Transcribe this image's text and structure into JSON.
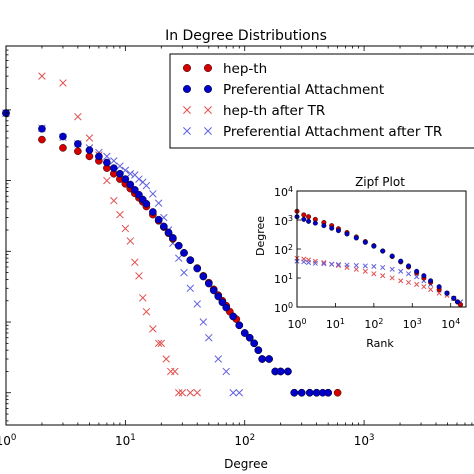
{
  "chart_data": [
    {
      "type": "scatter",
      "title": "In Degree Distributions",
      "xlabel": "Degree",
      "ylabel": "",
      "x_scale": "log",
      "y_scale": "log",
      "xlim": [
        1,
        9000
      ],
      "ylim": [
        0.35,
        80000
      ],
      "x_tick_labels": [
        {
          "value": 1,
          "label": "10^0"
        },
        {
          "value": 10,
          "label": "10^1"
        },
        {
          "value": 100,
          "label": "10^2"
        },
        {
          "value": 1000,
          "label": "10^3"
        }
      ],
      "legend_placement": "top-right",
      "colors": {
        "red": "#d40000",
        "blue": "#0000c8",
        "red_x": "#e25050",
        "blue_x": "#6060e0"
      },
      "series": [
        {
          "name": "hep-th",
          "marker": "circle",
          "color": "#d40000",
          "points": [
            [
              1,
              9000
            ],
            [
              2,
              3800
            ],
            [
              3,
              2900
            ],
            [
              4,
              2600
            ],
            [
              5,
              2200
            ],
            [
              6,
              1900
            ],
            [
              7,
              1500
            ],
            [
              8,
              1250
            ],
            [
              9,
              1050
            ],
            [
              10,
              900
            ],
            [
              11,
              770
            ],
            [
              12,
              660
            ],
            [
              13,
              570
            ],
            [
              14,
              500
            ],
            [
              15,
              430
            ],
            [
              17,
              330
            ],
            [
              19,
              270
            ],
            [
              21,
              220
            ],
            [
              23,
              180
            ],
            [
              25,
              150
            ],
            [
              28,
              120
            ],
            [
              31,
              95
            ],
            [
              35,
              75
            ],
            [
              40,
              58
            ],
            [
              45,
              45
            ],
            [
              50,
              36
            ],
            [
              55,
              29
            ],
            [
              60,
              24
            ],
            [
              65,
              20
            ],
            [
              70,
              17
            ],
            [
              75,
              14
            ],
            [
              80,
              12
            ],
            [
              85,
              11
            ],
            [
              90,
              9
            ],
            [
              100,
              7
            ],
            [
              110,
              6
            ],
            [
              120,
              5
            ],
            [
              130,
              4
            ],
            [
              140,
              3
            ],
            [
              160,
              3
            ],
            [
              180,
              2
            ],
            [
              200,
              2
            ],
            [
              230,
              2
            ],
            [
              260,
              1
            ],
            [
              300,
              1
            ],
            [
              350,
              1
            ],
            [
              400,
              1
            ],
            [
              500,
              1
            ],
            [
              600,
              1
            ]
          ]
        },
        {
          "name": "Preferential Attachment",
          "marker": "circle",
          "color": "#0000c8",
          "points": [
            [
              1,
              9000
            ],
            [
              2,
              5400
            ],
            [
              3,
              4200
            ],
            [
              4,
              3300
            ],
            [
              5,
              2700
            ],
            [
              6,
              2200
            ],
            [
              7,
              1800
            ],
            [
              8,
              1500
            ],
            [
              9,
              1250
            ],
            [
              10,
              1050
            ],
            [
              11,
              880
            ],
            [
              12,
              740
            ],
            [
              13,
              630
            ],
            [
              14,
              540
            ],
            [
              15,
              470
            ],
            [
              17,
              360
            ],
            [
              19,
              280
            ],
            [
              21,
              225
            ],
            [
              23,
              185
            ],
            [
              25,
              155
            ],
            [
              28,
              120
            ],
            [
              31,
              95
            ],
            [
              35,
              75
            ],
            [
              40,
              57
            ],
            [
              45,
              44
            ],
            [
              50,
              35
            ],
            [
              55,
              28
            ],
            [
              60,
              23
            ],
            [
              65,
              19
            ],
            [
              70,
              16
            ],
            [
              80,
              12
            ],
            [
              90,
              9
            ],
            [
              100,
              7
            ],
            [
              110,
              6
            ],
            [
              120,
              5
            ],
            [
              130,
              4
            ],
            [
              140,
              3
            ],
            [
              160,
              3
            ],
            [
              180,
              2
            ],
            [
              200,
              2
            ],
            [
              230,
              2
            ],
            [
              260,
              1
            ],
            [
              300,
              1
            ],
            [
              350,
              1
            ],
            [
              400,
              1
            ],
            [
              450,
              1
            ],
            [
              500,
              1
            ]
          ]
        },
        {
          "name": "hep-th after TR",
          "marker": "x",
          "color": "#e25050",
          "points": [
            [
              1,
              9000
            ],
            [
              2,
              30000
            ],
            [
              3,
              24000
            ],
            [
              4,
              8000
            ],
            [
              5,
              4000
            ],
            [
              6,
              2300
            ],
            [
              7,
              1000
            ],
            [
              8,
              520
            ],
            [
              9,
              330
            ],
            [
              10,
              210
            ],
            [
              11,
              140
            ],
            [
              12,
              70
            ],
            [
              13,
              45
            ],
            [
              14,
              22
            ],
            [
              15,
              14
            ],
            [
              17,
              8
            ],
            [
              19,
              5
            ],
            [
              20,
              5
            ],
            [
              22,
              3
            ],
            [
              24,
              2
            ],
            [
              26,
              2
            ],
            [
              28,
              1
            ],
            [
              30,
              1
            ],
            [
              35,
              1
            ],
            [
              40,
              1
            ]
          ]
        },
        {
          "name": "Preferential Attachment after TR",
          "marker": "x",
          "color": "#6060e0",
          "points": [
            [
              1,
              9000
            ],
            [
              2,
              5500
            ],
            [
              3,
              4100
            ],
            [
              4,
              3300
            ],
            [
              5,
              2900
            ],
            [
              6,
              2500
            ],
            [
              7,
              2200
            ],
            [
              8,
              1900
            ],
            [
              9,
              1600
            ],
            [
              10,
              1400
            ],
            [
              11,
              1250
            ],
            [
              12,
              1200
            ],
            [
              13,
              1050
            ],
            [
              14,
              950
            ],
            [
              15,
              850
            ],
            [
              17,
              650
            ],
            [
              19,
              480
            ],
            [
              21,
              300
            ],
            [
              23,
              200
            ],
            [
              25,
              130
            ],
            [
              28,
              80
            ],
            [
              31,
              50
            ],
            [
              35,
              30
            ],
            [
              40,
              18
            ],
            [
              45,
              10
            ],
            [
              50,
              6
            ],
            [
              60,
              3
            ],
            [
              70,
              2
            ],
            [
              80,
              1
            ],
            [
              90,
              1
            ]
          ]
        }
      ],
      "inset": {
        "type": "scatter",
        "title": "Zipf Plot",
        "xlabel": "Rank",
        "ylabel": "Degree",
        "x_scale": "log",
        "y_scale": "log",
        "xlim": [
          1,
          25000
        ],
        "ylim": [
          1,
          10000
        ],
        "x_tick_labels": [
          {
            "value": 1,
            "label": "10^0"
          },
          {
            "value": 10,
            "label": "10^1"
          },
          {
            "value": 100,
            "label": "10^2"
          },
          {
            "value": 1000,
            "label": "10^3"
          },
          {
            "value": 10000,
            "label": "10^4"
          }
        ],
        "y_tick_labels": [
          {
            "value": 1,
            "label": "10^0"
          },
          {
            "value": 10,
            "label": "10^1"
          },
          {
            "value": 100,
            "label": "10^2"
          },
          {
            "value": 1000,
            "label": "10^3"
          },
          {
            "value": 10000,
            "label": "10^4"
          }
        ],
        "series": [
          {
            "name": "hep-th",
            "marker": "circle",
            "color": "#d40000",
            "points": [
              [
                1,
                2000
              ],
              [
                1.5,
                1500
              ],
              [
                2,
                1300
              ],
              [
                3,
                1050
              ],
              [
                5,
                820
              ],
              [
                8,
                640
              ],
              [
                12,
                500
              ],
              [
                20,
                370
              ],
              [
                35,
                260
              ],
              [
                60,
                180
              ],
              [
                100,
                130
              ],
              [
                170,
                85
              ],
              [
                300,
                55
              ],
              [
                500,
                36
              ],
              [
                800,
                24
              ],
              [
                1300,
                15
              ],
              [
                2000,
                10
              ],
              [
                3000,
                7
              ],
              [
                5000,
                4
              ],
              [
                8000,
                3
              ],
              [
                12000,
                2
              ],
              [
                15000,
                1.5
              ],
              [
                18000,
                1.2
              ]
            ]
          },
          {
            "name": "Preferential Attachment",
            "marker": "circle",
            "color": "#0000c8",
            "points": [
              [
                1,
                1300
              ],
              [
                1.5,
                1050
              ],
              [
                2,
                900
              ],
              [
                3,
                780
              ],
              [
                5,
                640
              ],
              [
                8,
                520
              ],
              [
                12,
                430
              ],
              [
                20,
                330
              ],
              [
                35,
                240
              ],
              [
                60,
                170
              ],
              [
                100,
                125
              ],
              [
                170,
                85
              ],
              [
                300,
                57
              ],
              [
                500,
                38
              ],
              [
                800,
                26
              ],
              [
                1300,
                17
              ],
              [
                2000,
                12
              ],
              [
                3000,
                8
              ],
              [
                5000,
                5
              ],
              [
                8000,
                3
              ],
              [
                12000,
                2
              ],
              [
                15000,
                1.5
              ]
            ]
          },
          {
            "name": "hep-th after TR",
            "marker": "x",
            "color": "#e25050",
            "points": [
              [
                1,
                48
              ],
              [
                1.5,
                45
              ],
              [
                2,
                42
              ],
              [
                3,
                38
              ],
              [
                5,
                34
              ],
              [
                8,
                30
              ],
              [
                12,
                27
              ],
              [
                20,
                23
              ],
              [
                35,
                20
              ],
              [
                60,
                17
              ],
              [
                100,
                14
              ],
              [
                170,
                12
              ],
              [
                300,
                10
              ],
              [
                500,
                8
              ],
              [
                800,
                7
              ],
              [
                1300,
                6
              ],
              [
                2000,
                5
              ],
              [
                3000,
                4
              ],
              [
                5000,
                3
              ],
              [
                8000,
                2.5
              ],
              [
                12000,
                2
              ],
              [
                18000,
                1.5
              ]
            ]
          },
          {
            "name": "Preferential Attachment after TR",
            "marker": "x",
            "color": "#6060e0",
            "points": [
              [
                1,
                38
              ],
              [
                1.5,
                36
              ],
              [
                2,
                34
              ],
              [
                3,
                32
              ],
              [
                5,
                31
              ],
              [
                8,
                30
              ],
              [
                12,
                29
              ],
              [
                20,
                28
              ],
              [
                35,
                27
              ],
              [
                60,
                26
              ],
              [
                100,
                25
              ],
              [
                170,
                23
              ],
              [
                300,
                20
              ],
              [
                500,
                17
              ],
              [
                800,
                14
              ],
              [
                1300,
                11
              ],
              [
                2000,
                8
              ],
              [
                3000,
                6
              ],
              [
                5000,
                4
              ],
              [
                8000,
                3
              ],
              [
                12000,
                2
              ],
              [
                18000,
                1.5
              ]
            ]
          }
        ]
      }
    }
  ]
}
